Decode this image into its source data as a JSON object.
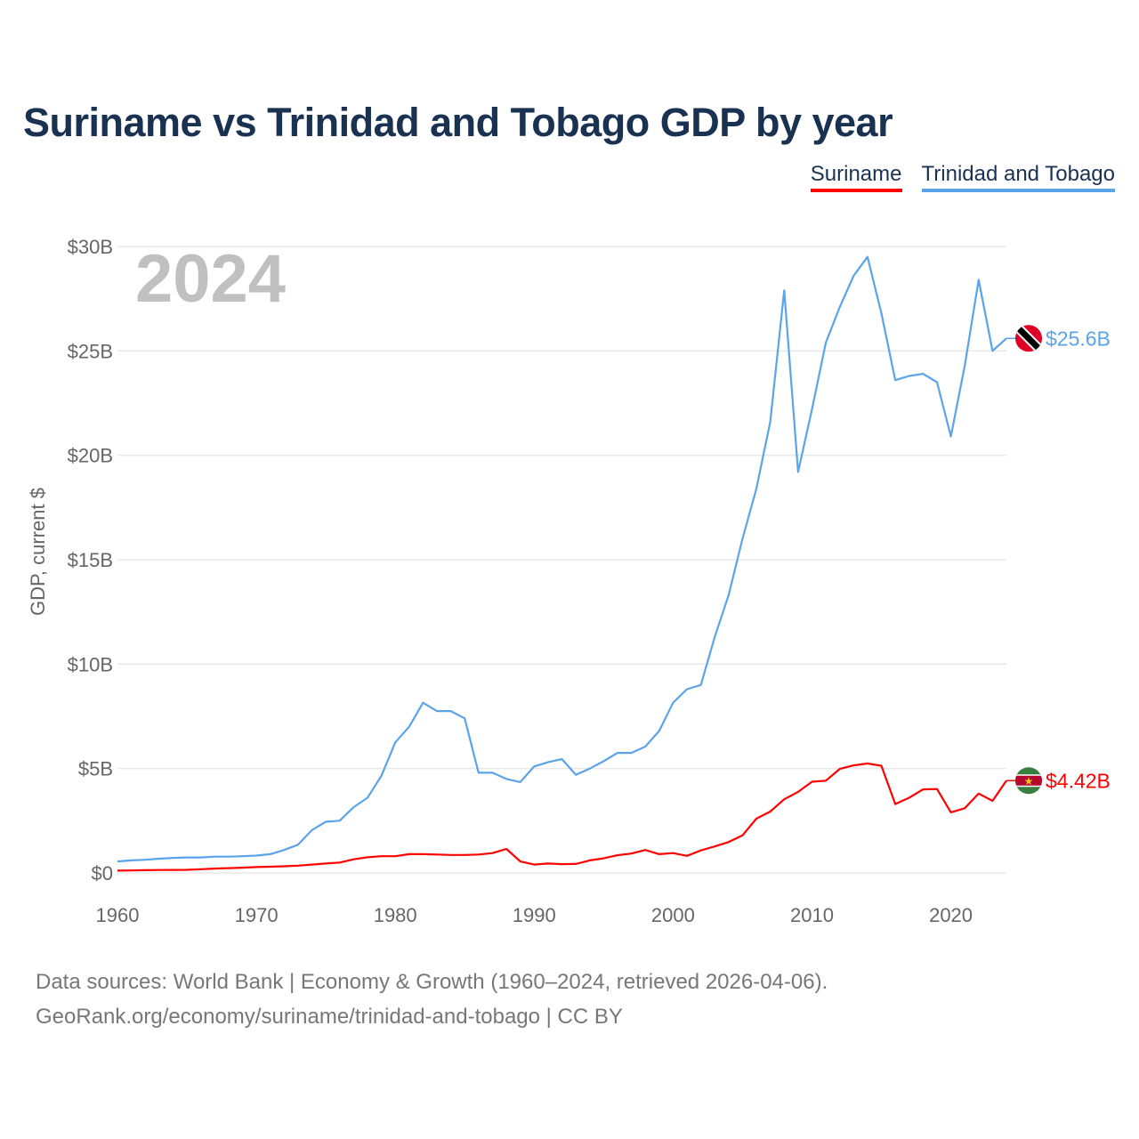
{
  "title": "Suriname vs Trinidad and Tobago GDP by year",
  "legend": [
    "Suriname",
    "Trinidad and Tobago"
  ],
  "footer": {
    "line1": "Data sources: World Bank | Economy & Growth (1960–2024, retrieved 2026-04-06).",
    "line2": "GeoRank.org/economy/suriname/trinidad-and-tobago | CC BY"
  },
  "chart_data": {
    "type": "line",
    "title": "Suriname vs Trinidad and Tobago GDP by year",
    "xlabel": "",
    "ylabel": "GDP, current $",
    "year_label": "2024",
    "xlim": [
      1960,
      2024
    ],
    "ylim": [
      0,
      30
    ],
    "x_ticks": [
      1960,
      1970,
      1980,
      1990,
      2000,
      2010,
      2020
    ],
    "y_ticks": [
      0,
      5,
      10,
      15,
      20,
      25,
      30
    ],
    "y_tick_labels": [
      "$0",
      "$5B",
      "$10B",
      "$15B",
      "$20B",
      "$25B",
      "$30B"
    ],
    "grid": true,
    "legend_position": "top-right",
    "x_start": 1960,
    "series": [
      {
        "name": "Suriname",
        "color": "#ff0000",
        "end_label": "$4.42B",
        "flag": "suriname-flag",
        "values": [
          0.11,
          0.12,
          0.13,
          0.14,
          0.145,
          0.15,
          0.18,
          0.21,
          0.23,
          0.25,
          0.28,
          0.3,
          0.32,
          0.35,
          0.4,
          0.45,
          0.5,
          0.65,
          0.75,
          0.8,
          0.8,
          0.9,
          0.9,
          0.88,
          0.86,
          0.86,
          0.88,
          0.95,
          1.15,
          0.55,
          0.4,
          0.45,
          0.42,
          0.43,
          0.6,
          0.7,
          0.85,
          0.93,
          1.1,
          0.9,
          0.95,
          0.82,
          1.08,
          1.27,
          1.48,
          1.8,
          2.6,
          2.94,
          3.53,
          3.88,
          4.37,
          4.42,
          4.98,
          5.15,
          5.24,
          5.13,
          3.3,
          3.6,
          4.0,
          4.02,
          2.9,
          3.1,
          3.8,
          3.45,
          4.42
        ]
      },
      {
        "name": "Trinidad and Tobago",
        "color": "#5ba3ea",
        "end_label": "$25.6B",
        "flag": "trinidad-flag",
        "values": [
          0.55,
          0.6,
          0.63,
          0.68,
          0.72,
          0.74,
          0.74,
          0.78,
          0.78,
          0.8,
          0.83,
          0.9,
          1.1,
          1.35,
          2.05,
          2.45,
          2.5,
          3.15,
          3.6,
          4.65,
          6.25,
          7.0,
          8.15,
          7.75,
          7.75,
          7.4,
          4.8,
          4.8,
          4.5,
          4.35,
          5.1,
          5.3,
          5.45,
          4.7,
          5.0,
          5.35,
          5.75,
          5.75,
          6.05,
          6.8,
          8.15,
          8.8,
          9.0,
          11.3,
          13.3,
          16.0,
          18.4,
          21.6,
          27.9,
          19.2,
          22.2,
          25.4,
          27.1,
          28.6,
          29.5,
          26.8,
          23.6,
          23.8,
          23.9,
          23.5,
          20.9,
          24.3,
          28.4,
          25.0,
          25.6
        ]
      }
    ]
  }
}
